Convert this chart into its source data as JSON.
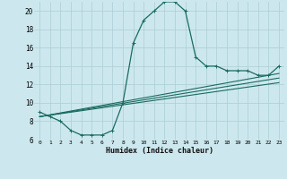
{
  "xlabel": "Humidex (Indice chaleur)",
  "bg_color": "#cce8ee",
  "grid_color": "#aacdd4",
  "line_color": "#1a6b60",
  "ylim": [
    6,
    21
  ],
  "xlim": [
    -0.5,
    23.5
  ],
  "yticks": [
    6,
    8,
    10,
    12,
    14,
    16,
    18,
    20
  ],
  "xtick_labels": [
    "0",
    "1",
    "2",
    "3",
    "4",
    "5",
    "6",
    "7",
    "8",
    "9",
    "10",
    "11",
    "12",
    "13",
    "14",
    "15",
    "16",
    "17",
    "18",
    "19",
    "20",
    "21",
    "22",
    "23"
  ],
  "series1": [
    9.0,
    8.5,
    8.0,
    7.0,
    6.5,
    6.5,
    6.5,
    7.0,
    10.0,
    16.5,
    19.0,
    20.0,
    21.0,
    21.0,
    20.0,
    15.0,
    14.0,
    14.0,
    13.5,
    13.5,
    13.5,
    13.0,
    13.0,
    14.0
  ],
  "series2_x": [
    0,
    23
  ],
  "series2_y": [
    8.5,
    12.2
  ],
  "series3_x": [
    0,
    23
  ],
  "series3_y": [
    8.5,
    12.7
  ],
  "series4_x": [
    0,
    23
  ],
  "series4_y": [
    8.5,
    13.2
  ]
}
